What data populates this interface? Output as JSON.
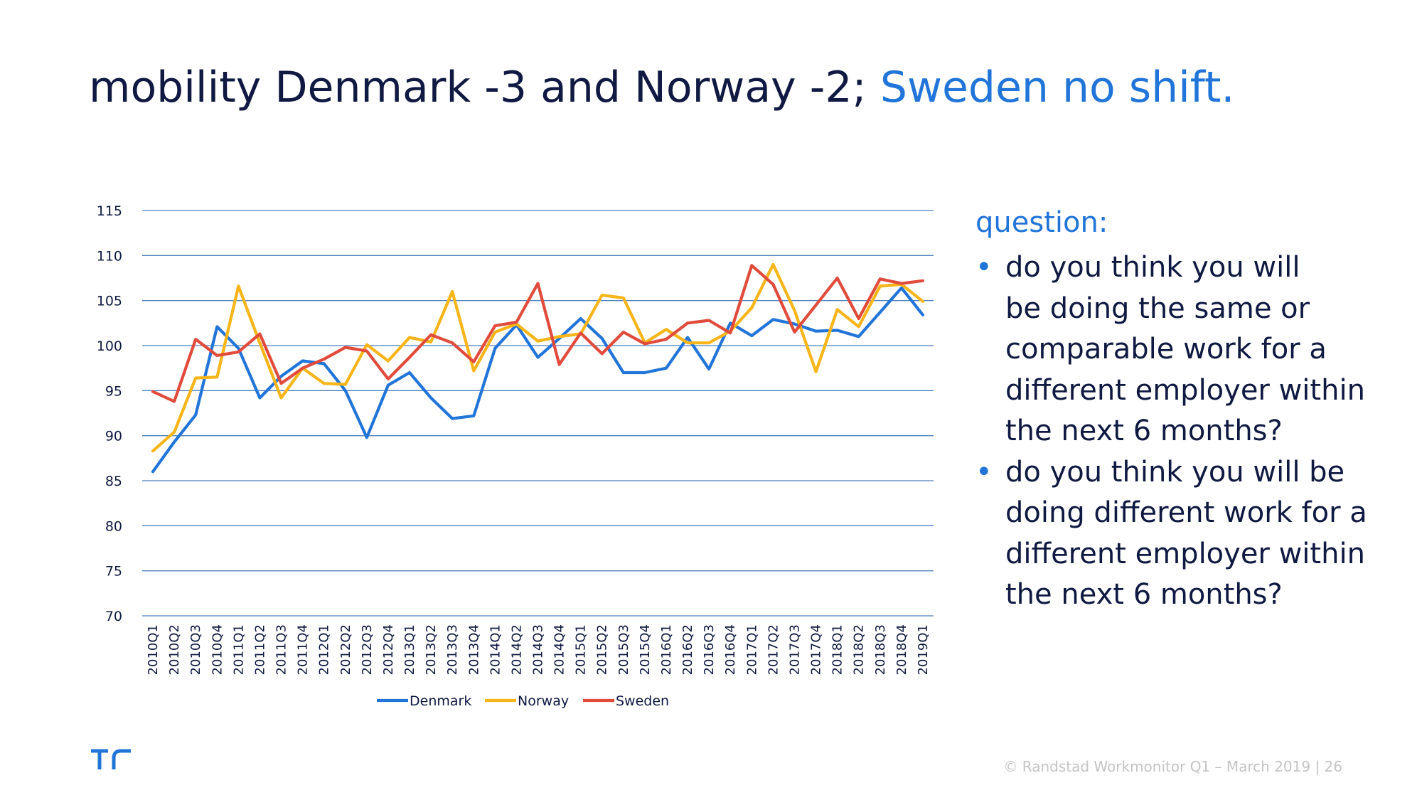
{
  "title": {
    "main": "mobility Denmark -3 and Norway -2;",
    "highlight": "Sweden no shift."
  },
  "colors": {
    "navy": "#0f1941",
    "accent_blue": "#2175d9",
    "grid": "#4f81bd",
    "denmark": "#2175d9",
    "norway": "#f7b519",
    "sweden": "#e04b3c",
    "footer": "#c4c4c4"
  },
  "chart_data": {
    "type": "line",
    "categories": [
      "2010Q1",
      "2010Q2",
      "2010Q3",
      "2010Q4",
      "2011Q1",
      "2011Q2",
      "2011Q3",
      "2011Q4",
      "2012Q1",
      "2012Q2",
      "2012Q3",
      "2012Q4",
      "2013Q1",
      "2013Q2",
      "2013Q3",
      "2013Q4",
      "2014Q1",
      "2014Q2",
      "2014Q3",
      "2014Q4",
      "2015Q1",
      "2015Q2",
      "2015Q3",
      "2015Q4",
      "2016Q1",
      "2016Q2",
      "2016Q3",
      "2016Q4",
      "2017Q1",
      "2017Q2",
      "2017Q3",
      "2017Q4",
      "2018Q1",
      "2018Q2",
      "2018Q3",
      "2018Q4",
      "2019Q1"
    ],
    "series": [
      {
        "name": "Denmark",
        "color": "#2175d9",
        "values": [
          86,
          89.3,
          92.3,
          102.1,
          99.7,
          94.2,
          96.6,
          98.3,
          98.0,
          95.0,
          89.8,
          95.6,
          97.0,
          94.2,
          91.9,
          92.2,
          99.7,
          102.3,
          98.7,
          100.8,
          103.0,
          100.8,
          97.0,
          97.0,
          97.5,
          100.9,
          97.4,
          102.5,
          101.1,
          102.9,
          102.4,
          101.6,
          101.7,
          101.0,
          103.7,
          106.4,
          103.4
        ]
      },
      {
        "name": "Norway",
        "color": "#f7b519",
        "values": [
          88.3,
          90.4,
          96.4,
          96.5,
          106.6,
          100.3,
          94.2,
          97.5,
          95.8,
          95.7,
          100.1,
          98.3,
          100.9,
          100.4,
          106.0,
          97.2,
          101.5,
          102.4,
          100.5,
          101.0,
          101.3,
          105.6,
          105.3,
          100.3,
          101.8,
          100.3,
          100.3,
          101.6,
          104.2,
          109.0,
          103.9,
          97.1,
          104.0,
          102.1,
          106.6,
          106.8,
          104.9
        ]
      },
      {
        "name": "Sweden",
        "color": "#e04b3c",
        "values": [
          94.9,
          93.8,
          100.7,
          98.9,
          99.3,
          101.3,
          95.8,
          97.5,
          98.5,
          99.8,
          99.4,
          96.3,
          98.7,
          101.2,
          100.3,
          98.2,
          102.2,
          102.6,
          106.9,
          97.9,
          101.4,
          99.1,
          101.5,
          100.2,
          100.7,
          102.5,
          102.8,
          101.4,
          108.9,
          106.8,
          101.5,
          104.5,
          107.5,
          103.0,
          107.4,
          106.9,
          107.2
        ]
      }
    ],
    "ylim": [
      70,
      115
    ],
    "yticks": [
      70,
      75,
      80,
      85,
      90,
      95,
      100,
      105,
      110,
      115
    ],
    "title": "",
    "xlabel": "",
    "ylabel": "",
    "grid": true,
    "legend_position": "bottom-center"
  },
  "side_panel": {
    "label": "question:",
    "questions": [
      [
        "do you think you will",
        "be doing the same or",
        "comparable work for a",
        "different employer within",
        "the next 6 months?"
      ],
      [
        "do you think you will be",
        "doing different work for a",
        "different employer within",
        "the next 6 months?"
      ]
    ]
  },
  "footer": {
    "text": "© Randstad Workmonitor Q1 – March 2019 | 26"
  },
  "logo": {
    "icon": "randstad-logo-icon"
  }
}
